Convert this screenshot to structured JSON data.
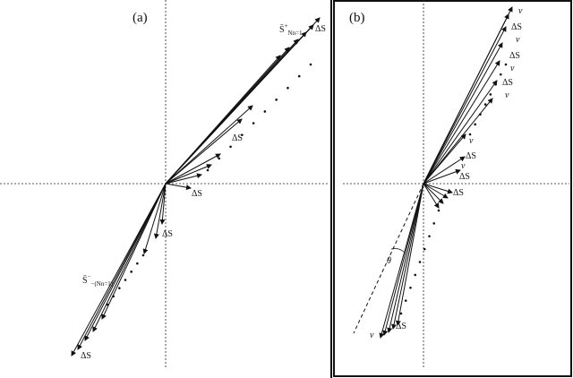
{
  "panel_a": {
    "label": "(a)",
    "upper_label": {
      "main": "S̄",
      "sup": "+",
      "sub": "Nn=1"
    },
    "lower_label": {
      "main": "S̄",
      "sup": "−",
      "sub": "−(Nn=1)"
    },
    "delta_labels": [
      "ΔS",
      "ΔS",
      "ΔS",
      "ΔS",
      "ΔS"
    ]
  },
  "panel_b": {
    "label": "(b)",
    "v_labels": [
      "v",
      "v",
      "v",
      "v",
      "v",
      "v",
      "v"
    ],
    "delta_labels": [
      "ΔS",
      "ΔS",
      "ΔS",
      "ΔS",
      "ΔS",
      "ΔS",
      "ΔS"
    ],
    "angle_label": "θ"
  }
}
